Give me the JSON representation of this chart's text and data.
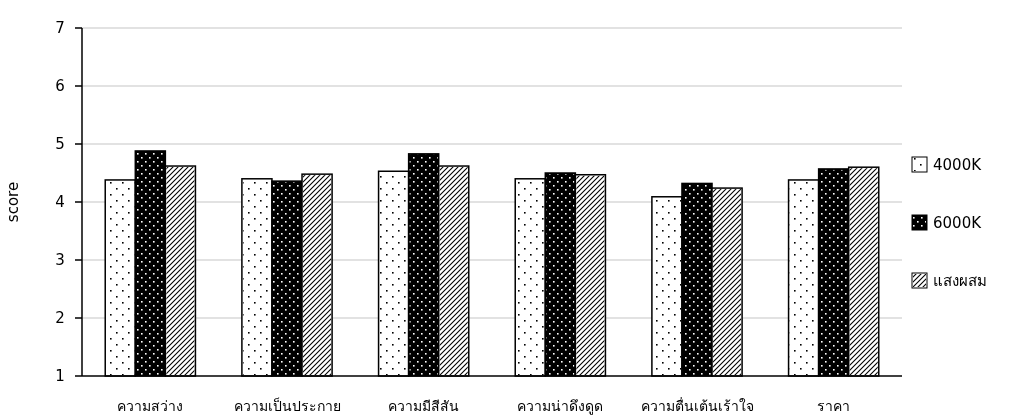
{
  "chart_data": {
    "type": "bar",
    "ylabel": "score",
    "categories": [
      "ความสว่าง",
      "ความเป็นประกาย",
      "ความมีสีสัน",
      "ความน่าดึงดูด",
      "ความตื่นเต้นเร้าใจ",
      "ราคา"
    ],
    "series": [
      {
        "name": "4000K",
        "color": "#ffffff",
        "values": [
          4.38,
          4.4,
          4.53,
          4.4,
          4.09,
          4.38
        ]
      },
      {
        "name": "6000K",
        "color": "#000000",
        "values": [
          4.88,
          4.36,
          4.83,
          4.5,
          4.32,
          4.57
        ]
      },
      {
        "name": "แสงผสม",
        "color": "#ffffff",
        "values": [
          4.62,
          4.48,
          4.62,
          4.47,
          4.24,
          4.6
        ]
      }
    ],
    "ylim": [
      1,
      7
    ],
    "yticks": [
      1,
      2,
      3,
      4,
      5,
      6,
      7
    ],
    "grid": "y",
    "legend": "right"
  }
}
